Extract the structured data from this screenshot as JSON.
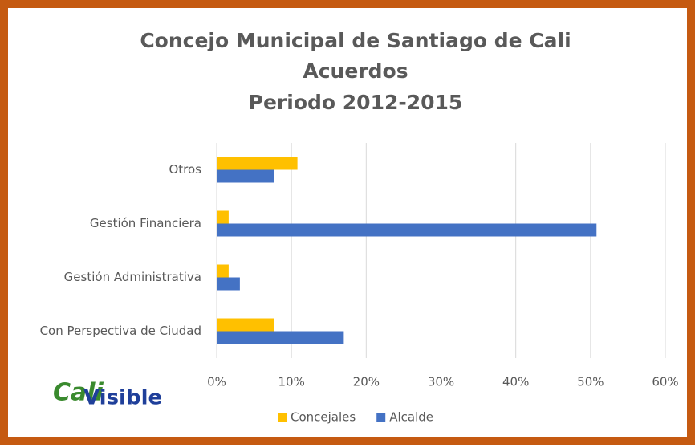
{
  "chart_data": {
    "type": "barh",
    "title": [
      "Concejo Municipal de Santiago de Cali",
      "Acuerdos",
      "Periodo 2012-2015"
    ],
    "categories": [
      "Otros",
      "Gestión Financiera",
      "Gestión Administrativa",
      "Con Perspectiva de Ciudad"
    ],
    "series": [
      {
        "name": "Concejales",
        "color": "#ffc000",
        "values": [
          10.8,
          1.6,
          1.6,
          7.7
        ]
      },
      {
        "name": "Alcalde",
        "color": "#4472c4",
        "values": [
          7.7,
          50.8,
          3.1,
          17.0
        ]
      }
    ],
    "xlim": [
      0,
      60
    ],
    "xticks": [
      {
        "value": 0,
        "label": "0%"
      },
      {
        "value": 10,
        "label": "10%"
      },
      {
        "value": 20,
        "label": "20%"
      },
      {
        "value": 30,
        "label": "30%"
      },
      {
        "value": 40,
        "label": "40%"
      },
      {
        "value": 50,
        "label": "50%"
      },
      {
        "value": 60,
        "label": "60%"
      }
    ],
    "grid": true,
    "legend": "bottom",
    "logo": [
      "Cali",
      "Visible"
    ]
  }
}
